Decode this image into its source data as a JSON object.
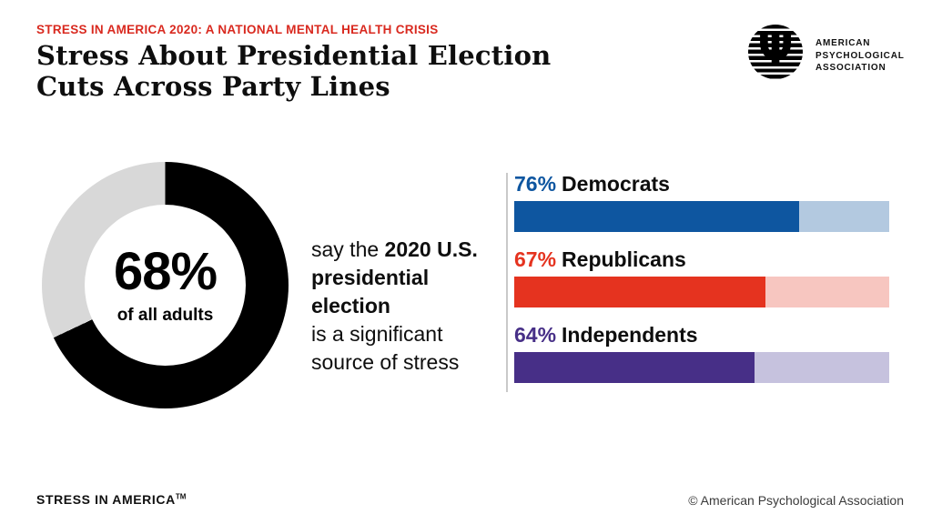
{
  "page": {
    "eyebrow": "STRESS IN AMERICA 2020: A NATIONAL MENTAL HEALTH CRISIS",
    "title_line1": "Stress About Presidential Election",
    "title_line2": "Cuts Across Party Lines",
    "footer_left": "STRESS IN AMERICA",
    "footer_left_tm": "TM",
    "footer_right": "© American Psychological Association"
  },
  "logo": {
    "psi": "Ψ",
    "line1": "AMERICAN",
    "line2": "PSYCHOLOGICAL",
    "line3": "ASSOCIATION"
  },
  "donut": {
    "value_label": "68%",
    "value": 68,
    "caption": "of all adults",
    "filled_color": "#000000",
    "remainder_color": "#d8d8d8"
  },
  "statement": {
    "l1_regular": "say the ",
    "l1_bold": "2020 U.S.",
    "l2_bold": "presidential election",
    "l3": "is a significant",
    "l4": "source of stress"
  },
  "bars": [
    {
      "pct_label": "76%",
      "value": 76,
      "label": "Democrats",
      "color": "#0e56a0",
      "track_color": "#b3c9e0"
    },
    {
      "pct_label": "67%",
      "value": 67,
      "label": "Republicans",
      "color": "#e5331f",
      "track_color": "#f7c6c0"
    },
    {
      "pct_label": "64%",
      "value": 64,
      "label": "Independents",
      "color": "#472f87",
      "track_color": "#c6c2de"
    }
  ],
  "chart_data": [
    {
      "type": "pie",
      "subtype": "donut",
      "title": "68% of all adults say the 2020 U.S. presidential election is a significant source of stress",
      "labels": [
        "Adults who say the 2020 U.S. presidential election is a significant source of stress",
        "Remainder"
      ],
      "values": [
        68,
        32
      ],
      "colors": [
        "#000000",
        "#d8d8d8"
      ],
      "center_label": "68%",
      "center_caption": "of all adults",
      "start_angle": "12 o'clock, clockwise"
    },
    {
      "type": "bar",
      "orientation": "horizontal",
      "categories": [
        "Democrats",
        "Republicans",
        "Independents"
      ],
      "values": [
        76,
        67,
        64
      ],
      "unit": "%",
      "xlim": [
        0,
        100
      ],
      "colors": [
        "#0e56a0",
        "#e5331f",
        "#472f87"
      ],
      "track_colors": [
        "#b3c9e0",
        "#f7c6c0",
        "#c6c2de"
      ],
      "grid": false,
      "legend": false,
      "value_labels": [
        "76%",
        "67%",
        "64%"
      ]
    }
  ]
}
